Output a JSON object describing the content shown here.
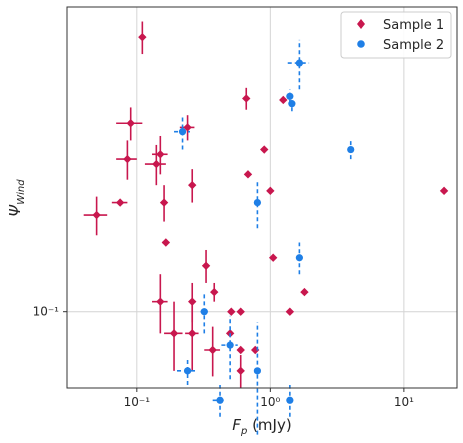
{
  "chart_data": {
    "type": "scatter",
    "title": "",
    "xlabel": "F_p (mJy)",
    "ylabel": "Ψ_Wind",
    "x_scale": "log",
    "y_scale": "log",
    "xlim": [
      0.03,
      25
    ],
    "ylim": [
      0.069,
      0.44
    ],
    "grid": true,
    "legend_position": "top-right",
    "x_ticks": [
      {
        "value": 0.1,
        "label": "10⁻¹"
      },
      {
        "value": 1,
        "label": "10⁰"
      },
      {
        "value": 10,
        "label": "10¹"
      }
    ],
    "y_ticks": [
      {
        "value": 0.1,
        "label": "10⁻¹"
      }
    ],
    "series": [
      {
        "name": "Sample 1",
        "color": "#c8174e",
        "marker": "diamond",
        "errorbar_style": "solid",
        "points": [
          {
            "x": 0.11,
            "y": 0.38,
            "yerr": 0.03
          },
          {
            "x": 0.09,
            "y": 0.25,
            "xerr": 0.02,
            "yerr": 0.02
          },
          {
            "x": 0.085,
            "y": 0.21,
            "xerr": 0.015,
            "yerr": 0.02
          },
          {
            "x": 0.15,
            "y": 0.215,
            "xerr": 0.02,
            "yerr": 0.02
          },
          {
            "x": 0.14,
            "y": 0.205,
            "xerr": 0.025,
            "yerr": 0.02
          },
          {
            "x": 0.24,
            "y": 0.245,
            "xerr": 0.03,
            "yerr": 0.015
          },
          {
            "x": 0.26,
            "y": 0.185,
            "yerr": 0.015
          },
          {
            "x": 0.075,
            "y": 0.17,
            "xerr": 0.01
          },
          {
            "x": 0.05,
            "y": 0.16,
            "xerr": 0.01,
            "yerr": 0.015
          },
          {
            "x": 0.16,
            "y": 0.17,
            "yerr": 0.015
          },
          {
            "x": 0.165,
            "y": 0.14,
            "xerr": 0.01
          },
          {
            "x": 0.15,
            "y": 0.105,
            "xerr": 0.02,
            "yerr": 0.015
          },
          {
            "x": 0.19,
            "y": 0.09,
            "xerr": 0.03,
            "yerr": 0.015
          },
          {
            "x": 0.26,
            "y": 0.09,
            "xerr": 0.03,
            "yerr": 0.015
          },
          {
            "x": 0.26,
            "y": 0.105,
            "yerr": 0.01
          },
          {
            "x": 0.33,
            "y": 0.125,
            "yerr": 0.01
          },
          {
            "x": 0.38,
            "y": 0.11,
            "yerr": 0.005
          },
          {
            "x": 0.37,
            "y": 0.083,
            "xerr": 0.05,
            "yerr": 0.01
          },
          {
            "x": 0.51,
            "y": 0.1
          },
          {
            "x": 0.5,
            "y": 0.09
          },
          {
            "x": 0.6,
            "y": 0.1
          },
          {
            "x": 0.6,
            "y": 0.083
          },
          {
            "x": 0.6,
            "y": 0.075,
            "yerr": 0.006
          },
          {
            "x": 0.77,
            "y": 0.083
          },
          {
            "x": 0.66,
            "y": 0.282,
            "yerr": 0.015
          },
          {
            "x": 0.68,
            "y": 0.195
          },
          {
            "x": 0.9,
            "y": 0.22
          },
          {
            "x": 1.0,
            "y": 0.18
          },
          {
            "x": 1.05,
            "y": 0.13
          },
          {
            "x": 1.25,
            "y": 0.28
          },
          {
            "x": 1.4,
            "y": 0.1
          },
          {
            "x": 1.8,
            "y": 0.11
          },
          {
            "x": 20,
            "y": 0.18
          }
        ]
      },
      {
        "name": "Sample 2",
        "color": "#1f7fe6",
        "marker": "circle",
        "errorbar_style": "dashed",
        "points": [
          {
            "x": 1.65,
            "y": 0.335,
            "xerr": 0.3,
            "yerr": 0.04
          },
          {
            "x": 1.4,
            "y": 0.285,
            "yerr": 0.01
          },
          {
            "x": 1.45,
            "y": 0.275,
            "yerr": 0.01
          },
          {
            "x": 0.22,
            "y": 0.24,
            "xerr": 0.03,
            "yerr": 0.02
          },
          {
            "x": 4.0,
            "y": 0.22,
            "yerr": 0.01
          },
          {
            "x": 0.8,
            "y": 0.17,
            "yerr": 0.02
          },
          {
            "x": 1.65,
            "y": 0.13,
            "yerr": 0.01
          },
          {
            "x": 0.32,
            "y": 0.1,
            "xerr": 0.02,
            "yerr": 0.01
          },
          {
            "x": 0.5,
            "y": 0.085,
            "xerr": 0.07,
            "yerr": 0.013
          },
          {
            "x": 0.24,
            "y": 0.075,
            "xerr": 0.04,
            "yerr": 0.005
          },
          {
            "x": 0.8,
            "y": 0.075,
            "yerr": 0.02
          },
          {
            "x": 0.42,
            "y": 0.065,
            "xerr": 0.05,
            "yerr": 0.005
          },
          {
            "x": 1.4,
            "y": 0.065,
            "yerr": 0.005
          }
        ]
      }
    ]
  }
}
